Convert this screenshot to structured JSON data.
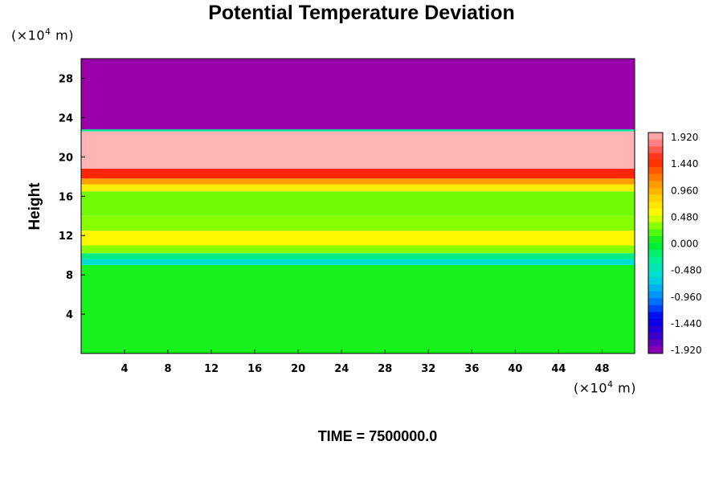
{
  "chart_data": {
    "type": "heatmap",
    "title": "Potential Temperature Deviation",
    "ylabel": "Height",
    "x_unit": {
      "prefix": "(×10",
      "exp": "4",
      "suffix": " m)"
    },
    "y_unit": {
      "prefix": "(×10",
      "exp": "4",
      "suffix": " m)"
    },
    "xlim": [
      0,
      51
    ],
    "ylim": [
      0,
      30
    ],
    "x_ticks": [
      "4",
      "8",
      "12",
      "16",
      "20",
      "24",
      "28",
      "32",
      "36",
      "40",
      "44",
      "48"
    ],
    "y_ticks": [
      "4",
      "8",
      "12",
      "16",
      "20",
      "24",
      "28"
    ],
    "layers": [
      {
        "y0": 0.0,
        "y1": 9.0,
        "value": 0.05
      },
      {
        "y0": 9.0,
        "y1": 9.6,
        "value": -0.55
      },
      {
        "y0": 9.6,
        "y1": 10.2,
        "value": -0.25
      },
      {
        "y0": 10.2,
        "y1": 11.0,
        "value": 0.3
      },
      {
        "y0": 11.0,
        "y1": 12.5,
        "value": 0.55
      },
      {
        "y0": 12.5,
        "y1": 14.0,
        "value": 0.3
      },
      {
        "y0": 14.0,
        "y1": 16.5,
        "value": 0.25
      },
      {
        "y0": 16.5,
        "y1": 17.2,
        "value": 0.6
      },
      {
        "y0": 17.2,
        "y1": 17.8,
        "value": 1.0
      },
      {
        "y0": 17.8,
        "y1": 18.8,
        "value": 1.45
      },
      {
        "y0": 18.8,
        "y1": 22.6,
        "value": 1.95
      },
      {
        "y0": 22.6,
        "y1": 22.8,
        "value": -0.3
      },
      {
        "y0": 22.8,
        "y1": 30.0,
        "value": -1.95
      }
    ],
    "colorbar": {
      "labels": [
        "1.920",
        "1.440",
        "0.960",
        "0.480",
        "0.000",
        "-0.480",
        "-0.960",
        "-1.440",
        "-1.920"
      ],
      "min": -1.92,
      "max": 1.92,
      "stops": [
        {
          "v": -1.92,
          "c": "#9900aa"
        },
        {
          "v": -1.6,
          "c": "#3300cc"
        },
        {
          "v": -1.3,
          "c": "#0000ee"
        },
        {
          "v": -0.96,
          "c": "#0088ff"
        },
        {
          "v": -0.6,
          "c": "#00dddd"
        },
        {
          "v": -0.3,
          "c": "#00ee99"
        },
        {
          "v": 0.0,
          "c": "#00ee22"
        },
        {
          "v": 0.3,
          "c": "#88ff00"
        },
        {
          "v": 0.5,
          "c": "#ffff00"
        },
        {
          "v": 0.8,
          "c": "#ffcc00"
        },
        {
          "v": 1.1,
          "c": "#ff8800"
        },
        {
          "v": 1.44,
          "c": "#ff2200"
        },
        {
          "v": 1.7,
          "c": "#ff7777"
        },
        {
          "v": 1.92,
          "c": "#ffb5b5"
        }
      ]
    }
  },
  "footer": {
    "time_label": "TIME = 7500000.0"
  }
}
